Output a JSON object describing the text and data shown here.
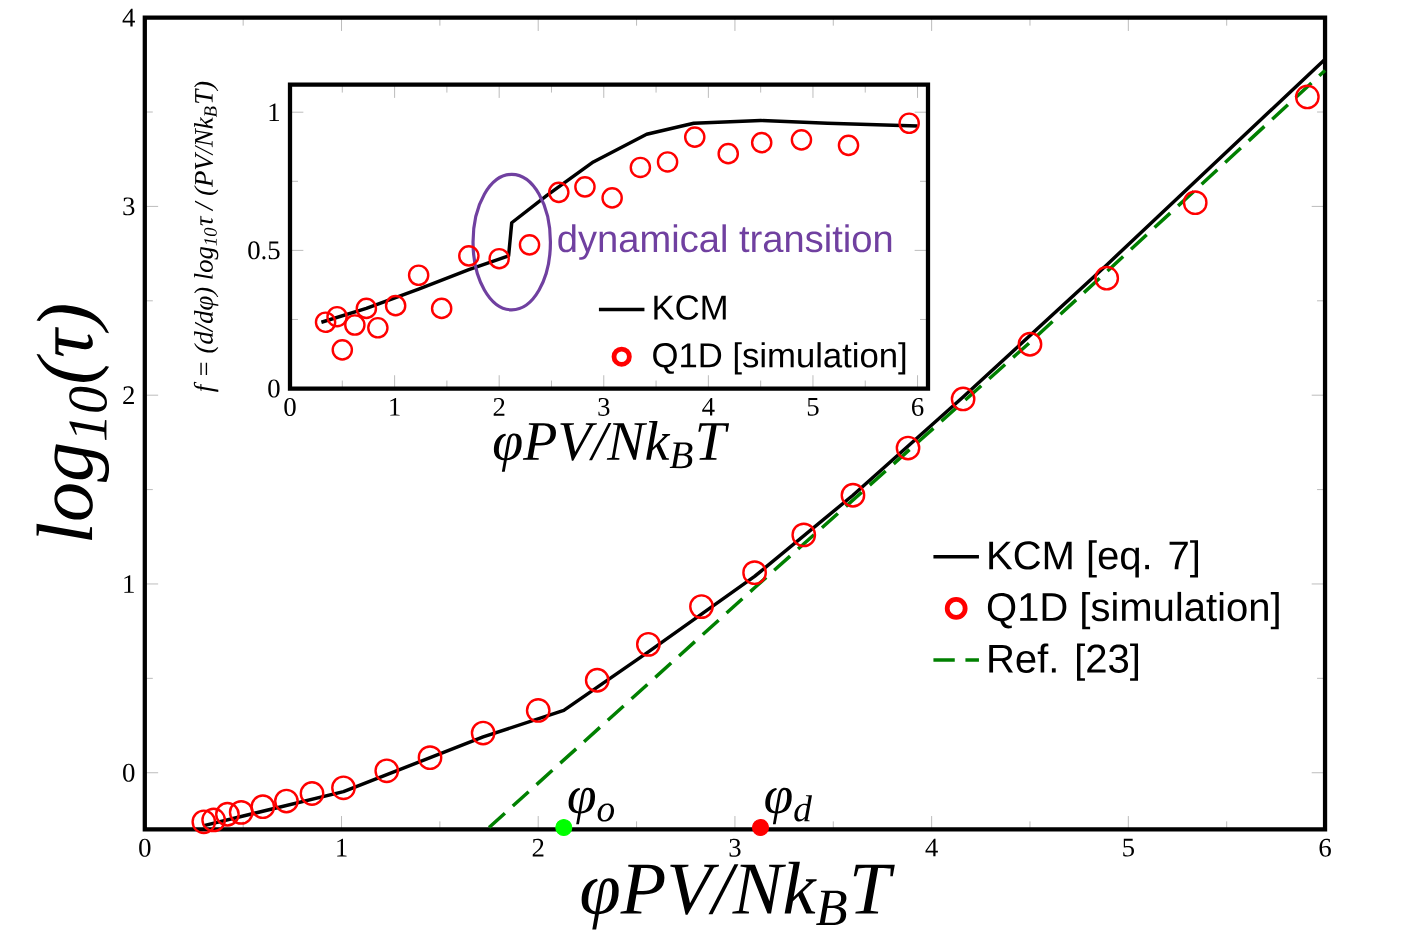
{
  "chart_data": [
    {
      "type": "line",
      "xlabel": "φPV/Nk$_{B}$T",
      "ylabel": "log$_{10}$(τ)",
      "xlim": [
        0,
        6
      ],
      "ylim": [
        -0.3,
        4
      ],
      "xticks": [
        0,
        1,
        2,
        3,
        4,
        5,
        6
      ],
      "yticks": [
        0,
        1,
        2,
        3,
        4
      ],
      "legend": "bottom right",
      "grid": false,
      "series": [
        {
          "name": "KCM [eq. 7]",
          "color": "#000000",
          "line_style": "solid",
          "x": [
            0.3,
            1.01,
            1.72,
            2.13,
            2.56,
            3.1,
            3.6,
            4.16,
            4.89,
            6.0
          ],
          "values": [
            -0.28,
            -0.1,
            0.19,
            0.33,
            0.64,
            1.04,
            1.47,
            1.99,
            2.69,
            3.78
          ]
        },
        {
          "name": "Q1D [simulation]",
          "type": "scatter",
          "marker": "circle",
          "color": "#ff0000",
          "x": [
            0.3,
            0.35,
            0.42,
            0.49,
            0.6,
            0.72,
            0.85,
            1.01,
            1.23,
            1.45,
            1.72,
            2.0,
            2.3,
            2.56,
            2.83,
            3.1,
            3.35,
            3.6,
            3.88,
            4.16,
            4.5,
            4.89,
            5.34,
            5.91
          ],
          "values": [
            -0.26,
            -0.25,
            -0.22,
            -0.21,
            -0.18,
            -0.15,
            -0.11,
            -0.08,
            0.01,
            0.08,
            0.21,
            0.33,
            0.49,
            0.68,
            0.88,
            1.06,
            1.26,
            1.47,
            1.72,
            1.98,
            2.27,
            2.62,
            3.02,
            3.58
          ]
        },
        {
          "name": "Ref. [23]",
          "color": "#008000",
          "line_style": "dashed",
          "x": [
            1.75,
            3.1,
            4.5,
            6.0
          ],
          "values": [
            -0.29,
            0.98,
            2.28,
            3.72
          ]
        },
        {
          "type": "scatter",
          "marker": "circle",
          "colors": [
            "#00ff00",
            "#ff0000"
          ],
          "x": [
            2.13,
            3.13
          ],
          "values": [
            -0.29,
            -0.29
          ]
        }
      ],
      "annotations": [
        {
          "text": "φ$_{o}$",
          "x": 2.13,
          "y": -0.29
        },
        {
          "text": "φ$_{d}$",
          "x": 3.13,
          "y": -0.29
        }
      ]
    },
    {
      "type": "line",
      "xlabel": "φPV/Nk$_{B}$T",
      "ylabel": "f = (d/dφ) log$_{10}$τ / (PV/Nk$_{B}$T)",
      "xlim": [
        0,
        6.1
      ],
      "ylim": [
        0,
        1.1
      ],
      "xticks": [
        0,
        1,
        2,
        3,
        4,
        5,
        6
      ],
      "yticks": [
        0,
        0.5,
        1
      ],
      "legend": "bottom right",
      "grid": false,
      "series": [
        {
          "name": "KCM",
          "color": "#000000",
          "line_style": "solid",
          "x": [
            0.3,
            0.73,
            1.23,
            1.71,
            2.09,
            2.12,
            2.46,
            2.9,
            3.41,
            3.86,
            4.5,
            5.14,
            6.0
          ],
          "values": [
            0.24,
            0.29,
            0.36,
            0.43,
            0.48,
            0.6,
            0.7,
            0.82,
            0.92,
            0.96,
            0.97,
            0.96,
            0.95
          ]
        },
        {
          "name": "Q1D [simulation]",
          "type": "scatter",
          "marker": "circle",
          "color": "#ff0000",
          "x": [
            0.34,
            0.45,
            0.5,
            0.62,
            0.73,
            0.84,
            1.01,
            1.23,
            1.45,
            1.71,
            2.0,
            2.29,
            2.57,
            2.82,
            3.08,
            3.35,
            3.61,
            3.87,
            4.19,
            4.51,
            4.89,
            5.34,
            5.92
          ],
          "values": [
            0.24,
            0.26,
            0.14,
            0.23,
            0.29,
            0.22,
            0.3,
            0.41,
            0.29,
            0.48,
            0.47,
            0.52,
            0.71,
            0.73,
            0.69,
            0.8,
            0.82,
            0.91,
            0.85,
            0.89,
            0.9,
            0.88,
            0.96
          ]
        }
      ],
      "annotations": [
        {
          "text": "dynamical transition",
          "x": 2.12,
          "y": 0.53
        }
      ]
    }
  ]
}
